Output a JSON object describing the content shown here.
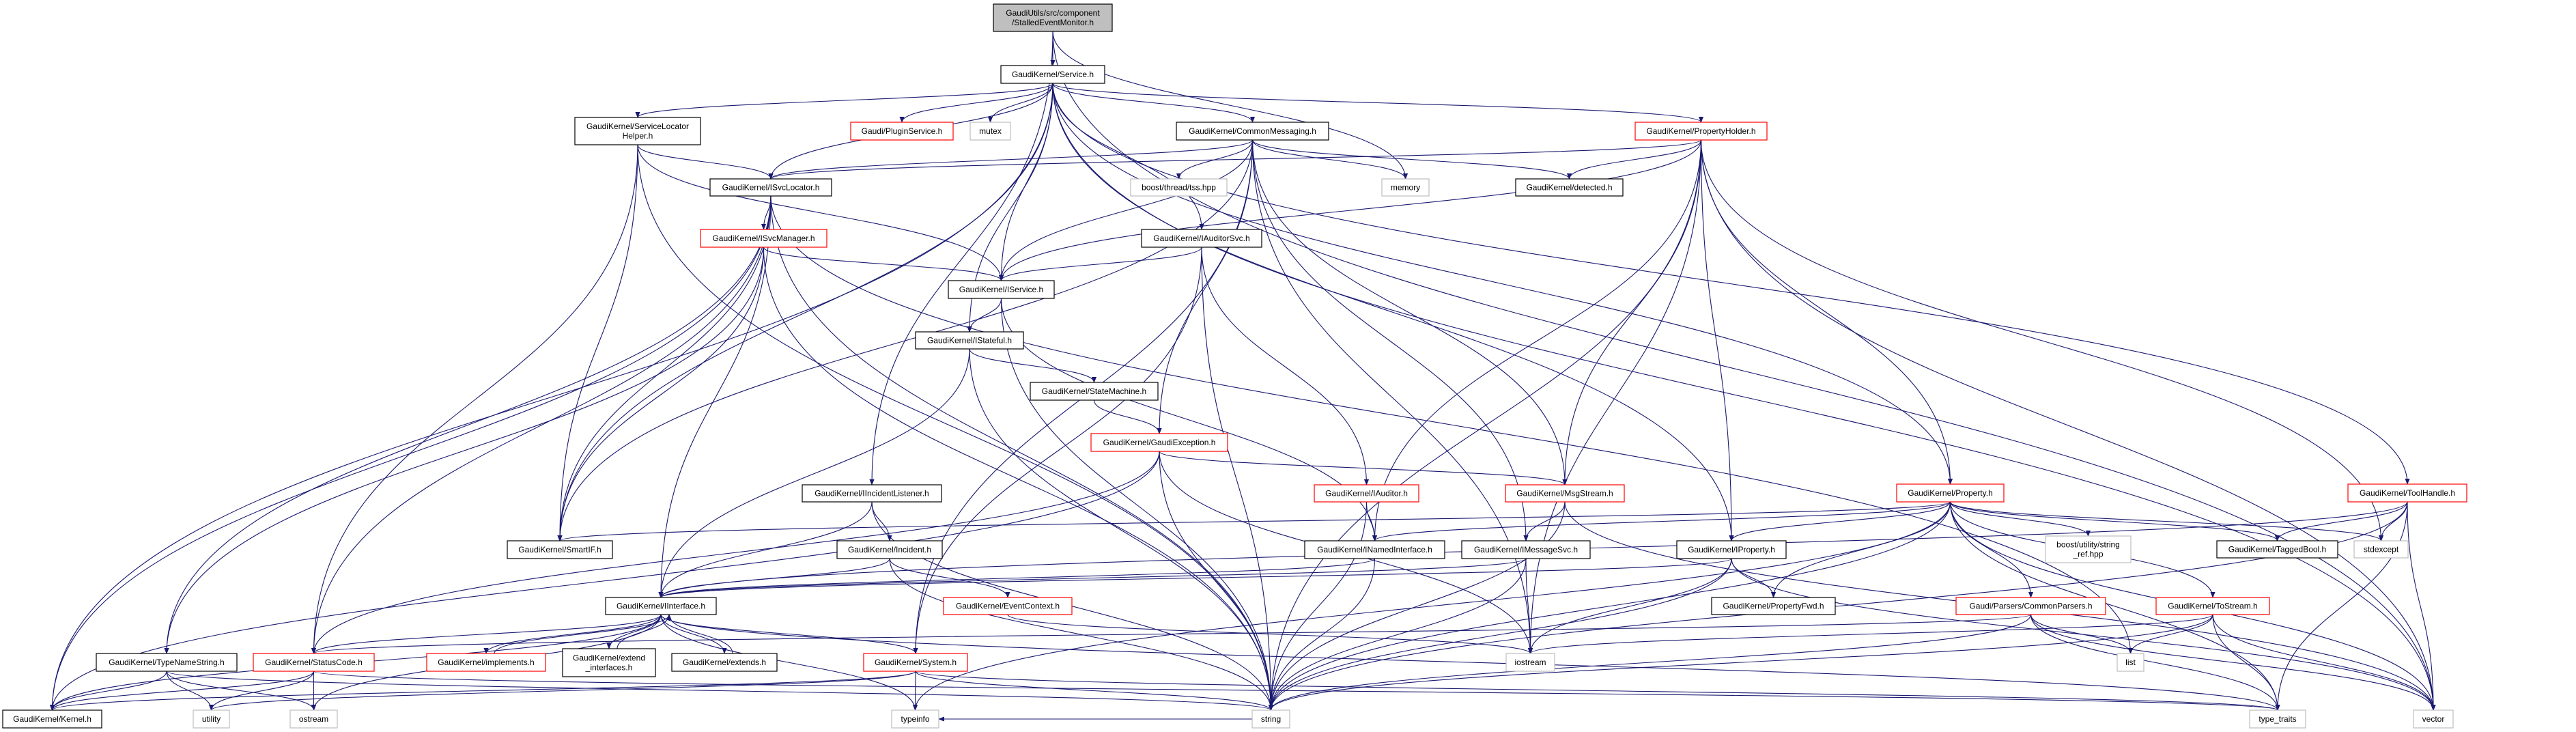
{
  "colors": {
    "edge": "#191970",
    "documented_border": "#000000",
    "undocumented_border": "#ff0000",
    "system_border": "#bfbfbf",
    "root_fill": "#bfbfbf"
  },
  "nodes": [
    {
      "id": "root",
      "kind": "root",
      "lines": [
        "GaudiUtils/src/component",
        "/StalledEventMonitor.h"
      ]
    },
    {
      "id": "service",
      "kind": "doc",
      "lines": [
        "GaudiKernel/Service.h"
      ]
    },
    {
      "id": "slh",
      "kind": "doc",
      "lines": [
        "GaudiKernel/ServiceLocator",
        "Helper.h"
      ]
    },
    {
      "id": "pluginsvc",
      "kind": "red",
      "lines": [
        "Gaudi/PluginService.h"
      ]
    },
    {
      "id": "mutex",
      "kind": "sys",
      "lines": [
        "mutex"
      ]
    },
    {
      "id": "commsg",
      "kind": "doc",
      "lines": [
        "GaudiKernel/CommonMessaging.h"
      ]
    },
    {
      "id": "propholder",
      "kind": "red",
      "lines": [
        "GaudiKernel/PropertyHolder.h"
      ]
    },
    {
      "id": "toolhandle",
      "kind": "red",
      "lines": [
        "GaudiKernel/ToolHandle.h"
      ]
    },
    {
      "id": "tss",
      "kind": "sys",
      "lines": [
        "boost/thread/tss.hpp"
      ]
    },
    {
      "id": "memory",
      "kind": "sys",
      "lines": [
        "memory"
      ]
    },
    {
      "id": "detected",
      "kind": "doc",
      "lines": [
        "GaudiKernel/detected.h"
      ]
    },
    {
      "id": "isvcloc",
      "kind": "doc",
      "lines": [
        "GaudiKernel/ISvcLocator.h"
      ]
    },
    {
      "id": "isvcmgr",
      "kind": "red",
      "lines": [
        "GaudiKernel/ISvcManager.h"
      ]
    },
    {
      "id": "iauditorsvc",
      "kind": "doc",
      "lines": [
        "GaudiKernel/IAuditorSvc.h"
      ]
    },
    {
      "id": "iservice",
      "kind": "doc",
      "lines": [
        "GaudiKernel/IService.h"
      ]
    },
    {
      "id": "istateful",
      "kind": "doc",
      "lines": [
        "GaudiKernel/IStateful.h"
      ]
    },
    {
      "id": "statemachine",
      "kind": "doc",
      "lines": [
        "GaudiKernel/StateMachine.h"
      ]
    },
    {
      "id": "gaudiexc",
      "kind": "red",
      "lines": [
        "GaudiKernel/GaudiException.h"
      ]
    },
    {
      "id": "inclistener",
      "kind": "doc",
      "lines": [
        "GaudiKernel/IIncidentListener.h"
      ]
    },
    {
      "id": "iauditor",
      "kind": "red",
      "lines": [
        "GaudiKernel/IAuditor.h"
      ]
    },
    {
      "id": "msgstream",
      "kind": "red",
      "lines": [
        "GaudiKernel/MsgStream.h"
      ]
    },
    {
      "id": "property",
      "kind": "red",
      "lines": [
        "GaudiKernel/Property.h"
      ]
    },
    {
      "id": "smartif",
      "kind": "doc",
      "lines": [
        "GaudiKernel/SmartIF.h"
      ]
    },
    {
      "id": "incident",
      "kind": "doc",
      "lines": [
        "GaudiKernel/Incident.h"
      ]
    },
    {
      "id": "inamed",
      "kind": "doc",
      "lines": [
        "GaudiKernel/INamedInterface.h"
      ]
    },
    {
      "id": "imsgsvc",
      "kind": "doc",
      "lines": [
        "GaudiKernel/IMessageSvc.h"
      ]
    },
    {
      "id": "iproperty",
      "kind": "doc",
      "lines": [
        "GaudiKernel/IProperty.h"
      ]
    },
    {
      "id": "stringref",
      "kind": "sys",
      "lines": [
        "boost/utility/string",
        "_ref.hpp"
      ]
    },
    {
      "id": "taggedbool",
      "kind": "doc",
      "lines": [
        "GaudiKernel/TaggedBool.h"
      ]
    },
    {
      "id": "stdexcept",
      "kind": "sys",
      "lines": [
        "stdexcept"
      ]
    },
    {
      "id": "iinterface",
      "kind": "doc",
      "lines": [
        "GaudiKernel/IInterface.h"
      ]
    },
    {
      "id": "eventctx",
      "kind": "red",
      "lines": [
        "GaudiKernel/EventContext.h"
      ]
    },
    {
      "id": "propfwd",
      "kind": "doc",
      "lines": [
        "GaudiKernel/PropertyFwd.h"
      ]
    },
    {
      "id": "commonparsers",
      "kind": "red",
      "lines": [
        "Gaudi/Parsers/CommonParsers.h"
      ]
    },
    {
      "id": "tostream",
      "kind": "red",
      "lines": [
        "GaudiKernel/ToStream.h"
      ]
    },
    {
      "id": "typenamestring",
      "kind": "doc",
      "lines": [
        "GaudiKernel/TypeNameString.h"
      ]
    },
    {
      "id": "statuscode",
      "kind": "red",
      "lines": [
        "GaudiKernel/StatusCode.h"
      ]
    },
    {
      "id": "implements",
      "kind": "red",
      "lines": [
        "GaudiKernel/implements.h"
      ]
    },
    {
      "id": "extendif",
      "kind": "doc",
      "lines": [
        "GaudiKernel/extend",
        "_interfaces.h"
      ]
    },
    {
      "id": "extends",
      "kind": "doc",
      "lines": [
        "GaudiKernel/extends.h"
      ]
    },
    {
      "id": "system",
      "kind": "red",
      "lines": [
        "GaudiKernel/System.h"
      ]
    },
    {
      "id": "iostream",
      "kind": "sys",
      "lines": [
        "iostream"
      ]
    },
    {
      "id": "list",
      "kind": "sys",
      "lines": [
        "list"
      ]
    },
    {
      "id": "kernel",
      "kind": "doc",
      "lines": [
        "GaudiKernel/Kernel.h"
      ]
    },
    {
      "id": "utility",
      "kind": "sys",
      "lines": [
        "utility"
      ]
    },
    {
      "id": "ostream",
      "kind": "sys",
      "lines": [
        "ostream"
      ]
    },
    {
      "id": "typeinfo",
      "kind": "sys",
      "lines": [
        "typeinfo"
      ]
    },
    {
      "id": "string",
      "kind": "sys",
      "lines": [
        "string"
      ]
    },
    {
      "id": "typetraits",
      "kind": "sys",
      "lines": [
        "type_traits"
      ]
    },
    {
      "id": "vector",
      "kind": "sys",
      "lines": [
        "vector"
      ]
    }
  ],
  "edges": [
    [
      "root",
      "service"
    ],
    [
      "root",
      "memory"
    ],
    [
      "root",
      "inclistener"
    ],
    [
      "root",
      "vector"
    ],
    [
      "service",
      "slh"
    ],
    [
      "service",
      "pluginsvc"
    ],
    [
      "service",
      "mutex"
    ],
    [
      "service",
      "commsg"
    ],
    [
      "service",
      "propholder"
    ],
    [
      "service",
      "isvcloc"
    ],
    [
      "service",
      "iservice"
    ],
    [
      "service",
      "istateful"
    ],
    [
      "service",
      "iauditorsvc"
    ],
    [
      "service",
      "smartif"
    ],
    [
      "service",
      "iproperty"
    ],
    [
      "service",
      "property"
    ],
    [
      "service",
      "toolhandle"
    ],
    [
      "service",
      "vector"
    ],
    [
      "service",
      "kernel"
    ],
    [
      "slh",
      "isvcloc"
    ],
    [
      "slh",
      "iservice"
    ],
    [
      "slh",
      "smartif"
    ],
    [
      "slh",
      "statuscode"
    ],
    [
      "slh",
      "string"
    ],
    [
      "commsg",
      "tss"
    ],
    [
      "commsg",
      "memory"
    ],
    [
      "commsg",
      "detected"
    ],
    [
      "commsg",
      "isvcloc"
    ],
    [
      "commsg",
      "iservice"
    ],
    [
      "commsg",
      "gaudiexc"
    ],
    [
      "commsg",
      "msgstream"
    ],
    [
      "commsg",
      "imsgsvc"
    ],
    [
      "commsg",
      "smartif"
    ],
    [
      "commsg",
      "system"
    ],
    [
      "commsg",
      "iostream"
    ],
    [
      "propholder",
      "detected"
    ],
    [
      "propholder",
      "isvcloc"
    ],
    [
      "propholder",
      "iservice"
    ],
    [
      "propholder",
      "msgstream"
    ],
    [
      "propholder",
      "inamed"
    ],
    [
      "propholder",
      "iproperty"
    ],
    [
      "propholder",
      "property"
    ],
    [
      "propholder",
      "iostream"
    ],
    [
      "propholder",
      "string"
    ],
    [
      "propholder",
      "stdexcept"
    ],
    [
      "propholder",
      "vector"
    ],
    [
      "isvcloc",
      "isvcmgr"
    ],
    [
      "isvcloc",
      "smartif"
    ],
    [
      "isvcloc",
      "iinterface"
    ],
    [
      "isvcloc",
      "typenamestring"
    ],
    [
      "isvcloc",
      "list"
    ],
    [
      "isvcloc",
      "string"
    ],
    [
      "isvcloc",
      "kernel"
    ],
    [
      "isvcloc",
      "statuscode"
    ],
    [
      "isvcmgr",
      "iservice"
    ],
    [
      "isvcmgr",
      "smartif"
    ],
    [
      "isvcmgr",
      "typenamestring"
    ],
    [
      "isvcmgr",
      "string"
    ],
    [
      "iauditorsvc",
      "iservice"
    ],
    [
      "iauditorsvc",
      "iauditor"
    ],
    [
      "iauditorsvc",
      "system"
    ],
    [
      "iauditorsvc",
      "string"
    ],
    [
      "iservice",
      "istateful"
    ],
    [
      "iservice",
      "inamed"
    ],
    [
      "iservice",
      "string"
    ],
    [
      "istateful",
      "statemachine"
    ],
    [
      "istateful",
      "iinterface"
    ],
    [
      "istateful",
      "string"
    ],
    [
      "statemachine",
      "gaudiexc"
    ],
    [
      "gaudiexc",
      "msgstream"
    ],
    [
      "gaudiexc",
      "kernel"
    ],
    [
      "gaudiexc",
      "statuscode"
    ],
    [
      "gaudiexc",
      "string"
    ],
    [
      "gaudiexc",
      "iostream"
    ],
    [
      "inclistener",
      "iinterface"
    ],
    [
      "inclistener",
      "incident"
    ],
    [
      "inclistener",
      "string"
    ],
    [
      "iauditor",
      "inamed"
    ],
    [
      "iauditor",
      "string"
    ],
    [
      "msgstream",
      "imsgsvc"
    ],
    [
      "msgstream",
      "string"
    ],
    [
      "msgstream",
      "vector"
    ],
    [
      "incident",
      "eventctx"
    ],
    [
      "incident",
      "iinterface"
    ],
    [
      "incident",
      "string"
    ],
    [
      "inamed",
      "iinterface"
    ],
    [
      "inamed",
      "string"
    ],
    [
      "imsgsvc",
      "iinterface"
    ],
    [
      "imsgsvc",
      "iostream"
    ],
    [
      "imsgsvc",
      "string"
    ],
    [
      "iproperty",
      "iinterface"
    ],
    [
      "iproperty",
      "propfwd"
    ],
    [
      "iproperty",
      "iostream"
    ],
    [
      "iproperty",
      "string"
    ],
    [
      "iproperty",
      "vector"
    ],
    [
      "property",
      "iproperty"
    ],
    [
      "property",
      "propfwd"
    ],
    [
      "property",
      "stringref"
    ],
    [
      "property",
      "taggedbool"
    ],
    [
      "property",
      "stdexcept"
    ],
    [
      "property",
      "commonparsers"
    ],
    [
      "property",
      "tostream"
    ],
    [
      "property",
      "smartif"
    ],
    [
      "property",
      "inamed"
    ],
    [
      "property",
      "string"
    ],
    [
      "property",
      "typeinfo"
    ],
    [
      "property",
      "vector"
    ],
    [
      "property",
      "typetraits"
    ],
    [
      "toolhandle",
      "taggedbool"
    ],
    [
      "toolhandle",
      "stdexcept"
    ],
    [
      "toolhandle",
      "vector"
    ],
    [
      "toolhandle",
      "typetraits"
    ],
    [
      "toolhandle",
      "string"
    ],
    [
      "toolhandle",
      "iinterface"
    ],
    [
      "commonparsers",
      "list"
    ],
    [
      "commonparsers",
      "vector"
    ],
    [
      "commonparsers",
      "string"
    ],
    [
      "commonparsers",
      "typetraits"
    ],
    [
      "commonparsers",
      "statuscode"
    ],
    [
      "tostream",
      "list"
    ],
    [
      "tostream",
      "vector"
    ],
    [
      "tostream",
      "typetraits"
    ],
    [
      "tostream",
      "string"
    ],
    [
      "tostream",
      "iostream"
    ],
    [
      "eventctx",
      "iostream"
    ],
    [
      "iinterface",
      "kernel"
    ],
    [
      "iinterface",
      "statuscode"
    ],
    [
      "iinterface",
      "implements"
    ],
    [
      "iinterface",
      "extendif"
    ],
    [
      "iinterface",
      "extends"
    ],
    [
      "iinterface",
      "system"
    ],
    [
      "iinterface",
      "typeinfo"
    ],
    [
      "iinterface",
      "ostream"
    ],
    [
      "iinterface",
      "typetraits"
    ],
    [
      "implements",
      "iinterface"
    ],
    [
      "extendif",
      "iinterface"
    ],
    [
      "extends",
      "iinterface"
    ],
    [
      "statuscode",
      "kernel"
    ],
    [
      "statuscode",
      "utility"
    ],
    [
      "statuscode",
      "ostream"
    ],
    [
      "statuscode",
      "typetraits"
    ],
    [
      "typenamestring",
      "utility"
    ],
    [
      "typenamestring",
      "ostream"
    ],
    [
      "typenamestring",
      "string"
    ],
    [
      "typenamestring",
      "kernel"
    ],
    [
      "system",
      "typeinfo"
    ],
    [
      "system",
      "string"
    ],
    [
      "system",
      "utility"
    ],
    [
      "system",
      "kernel"
    ],
    [
      "system",
      "typetraits"
    ],
    [
      "string",
      "typeinfo"
    ]
  ]
}
